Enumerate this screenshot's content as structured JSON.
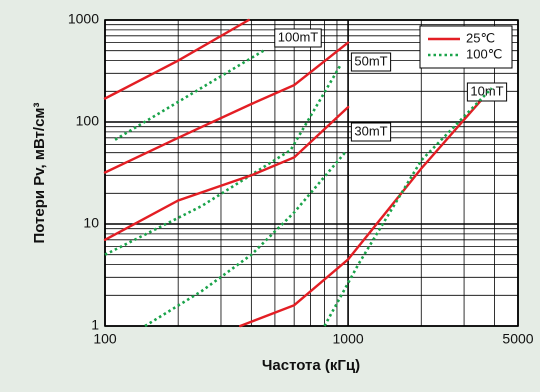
{
  "chart_data": {
    "type": "line",
    "x_label": "Частота (кГц)",
    "y_label": "Потери Pv,  мВт/см³",
    "log_x": true,
    "log_y": true,
    "xlim": [
      100,
      5000
    ],
    "ylim": [
      1,
      1000
    ],
    "xticks": [
      100,
      1000,
      5000
    ],
    "yticks": [
      1,
      10,
      100,
      1000
    ],
    "grid": true,
    "minor_grid": true,
    "legend": "upper right",
    "series": [
      {
        "name": "25℃",
        "label": "100mT",
        "color": "#e31e24",
        "style": "solid",
        "x": [
          100,
          200,
          390
        ],
        "values": [
          170,
          400,
          1000
        ]
      },
      {
        "name": "100℃",
        "color": "#1aa34a",
        "style": "dotted",
        "x": [
          110,
          455
        ],
        "values": [
          67,
          510
        ]
      },
      {
        "name": "25℃",
        "label": "50mT",
        "color": "#e31e24",
        "style": "solid",
        "x": [
          100,
          200,
          400,
          600,
          1000
        ],
        "values": [
          32,
          70,
          150,
          230,
          600
        ]
      },
      {
        "name": "100℃",
        "color": "#1aa34a",
        "style": "dotted",
        "x": [
          100,
          250,
          580,
          930
        ],
        "values": [
          5,
          15,
          53,
          360
        ]
      },
      {
        "name": "25℃",
        "label": "30mT",
        "color": "#e31e24",
        "style": "solid",
        "x": [
          100,
          200,
          400,
          600,
          1000
        ],
        "values": [
          7,
          17,
          30,
          45,
          140
        ]
      },
      {
        "name": "100℃",
        "color": "#1aa34a",
        "style": "dotted",
        "x": [
          146,
          250,
          400,
          600,
          970
        ],
        "values": [
          1,
          2.2,
          5,
          13,
          50
        ]
      },
      {
        "name": "25℃",
        "label": "10mT",
        "color": "#e31e24",
        "style": "solid",
        "x": [
          360,
          600,
          1000,
          2000,
          3900
        ],
        "values": [
          1,
          1.6,
          4.5,
          35,
          215
        ]
      },
      {
        "name": "100℃",
        "color": "#1aa34a",
        "style": "dotted",
        "x": [
          800,
          1100,
          2000,
          3900
        ],
        "values": [
          1,
          4,
          42,
          215
        ]
      }
    ]
  }
}
